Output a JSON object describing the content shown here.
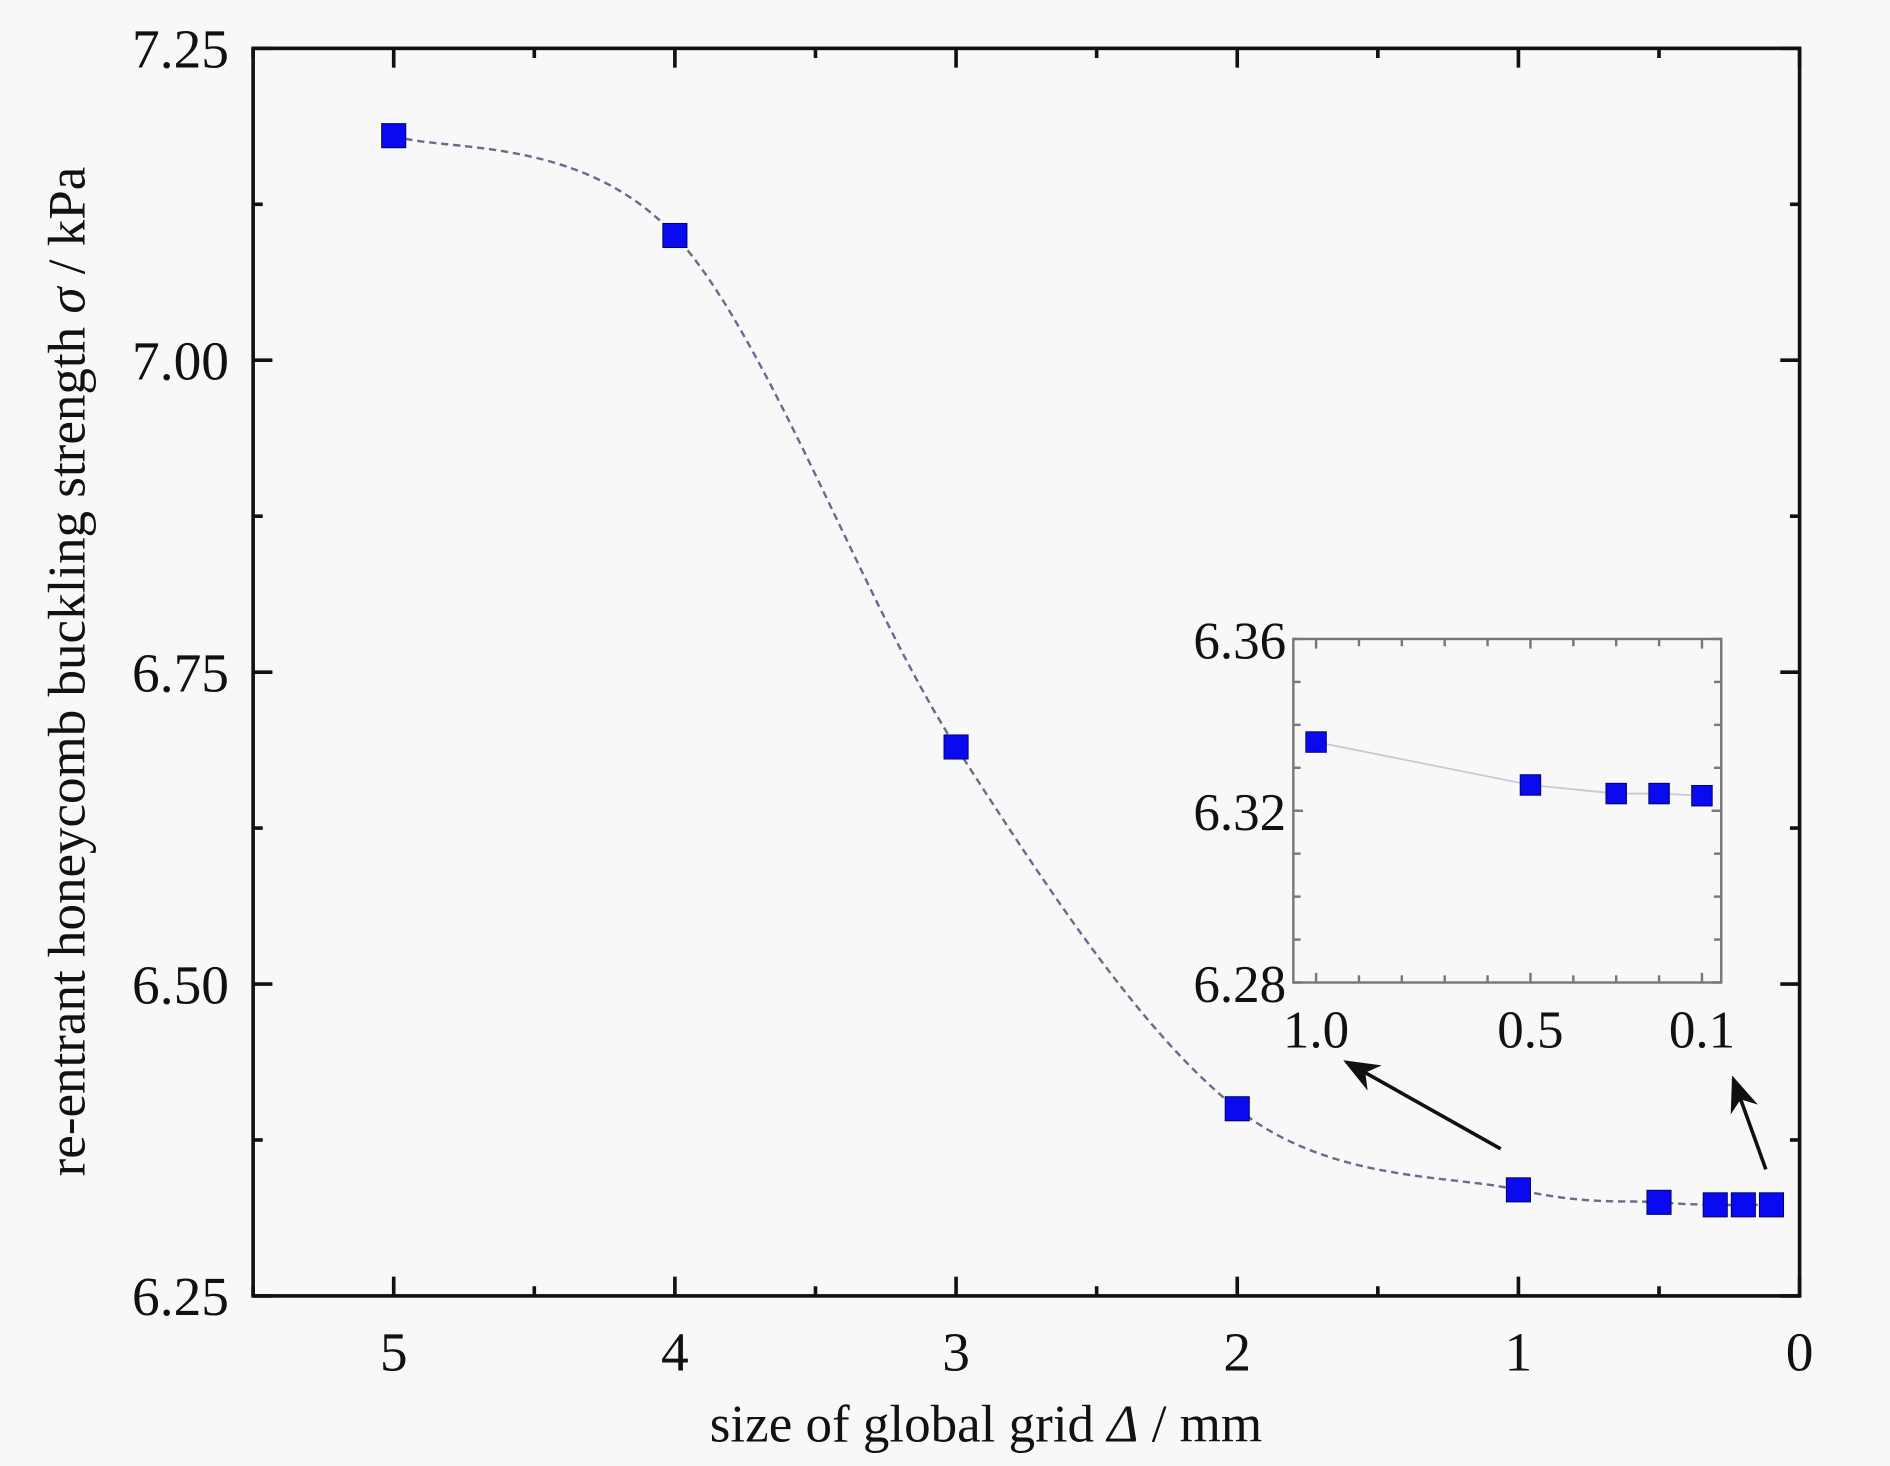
{
  "chart_data": [
    {
      "type": "line",
      "name": "main",
      "xlabel_parts": [
        "size of global grid ",
        "Δ",
        " / mm"
      ],
      "ylabel_parts": [
        "re-entrant honeycomb  buckling strength ",
        "σ",
        " / kPa"
      ],
      "xlim": [
        5.5,
        0
      ],
      "ylim": [
        6.25,
        7.25
      ],
      "xticks": [
        "5",
        "4",
        "3",
        "2",
        "1",
        "0"
      ],
      "xtick_values": [
        5,
        4,
        3,
        2,
        1,
        0
      ],
      "yticks": [
        "6.25",
        "6.50",
        "6.75",
        "7.00",
        "7.25"
      ],
      "ytick_values": [
        6.25,
        6.5,
        6.75,
        7.0,
        7.25
      ],
      "x": [
        5,
        4,
        3,
        2,
        1,
        0.5,
        0.3,
        0.2,
        0.1
      ],
      "y": [
        7.18,
        7.1,
        6.69,
        6.4,
        6.335,
        6.325,
        6.323,
        6.323,
        6.323
      ],
      "marker": "square",
      "marker_color": "#0a0af0",
      "line_style": "dashed smooth",
      "line_color": "#6a6a8a",
      "grid": false
    },
    {
      "type": "line",
      "name": "inset",
      "xlim": [
        1.053,
        0.055
      ],
      "ylim": [
        6.28,
        6.36
      ],
      "xticks": [
        "1.0",
        "0.5",
        "0.1"
      ],
      "xtick_values": [
        1.0,
        0.5,
        0.1
      ],
      "yticks": [
        "6.28",
        "6.32",
        "6.36"
      ],
      "ytick_values": [
        6.28,
        6.32,
        6.36
      ],
      "x": [
        1.0,
        0.5,
        0.3,
        0.2,
        0.1
      ],
      "y": [
        6.336,
        6.326,
        6.324,
        6.324,
        6.3235
      ],
      "marker": "square",
      "marker_color": "#0a0af0",
      "line_style": "solid",
      "line_color": "#c8c8d8",
      "grid": false
    }
  ]
}
